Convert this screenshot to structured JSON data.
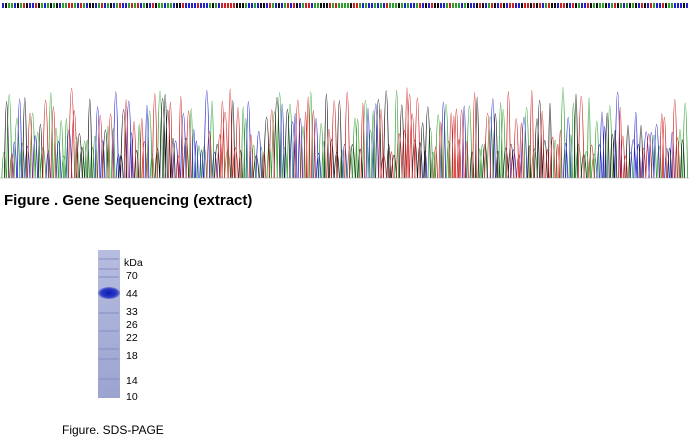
{
  "sequencing": {
    "caption": "Figure . Gene Sequencing (extract)",
    "base_colors": {
      "A": "#2e9f2e",
      "C": "#2222cc",
      "G": "#111111",
      "T": "#cc2222"
    }
  },
  "sds_page": {
    "caption": "Figure. SDS-PAGE",
    "unit_label": "kDa",
    "band_kda": 44,
    "lane_color": "#8a92c8",
    "band_color": "#1f2fc2",
    "markers": [
      "70",
      "44",
      "33",
      "26",
      "22",
      "18",
      "14",
      "10"
    ]
  }
}
